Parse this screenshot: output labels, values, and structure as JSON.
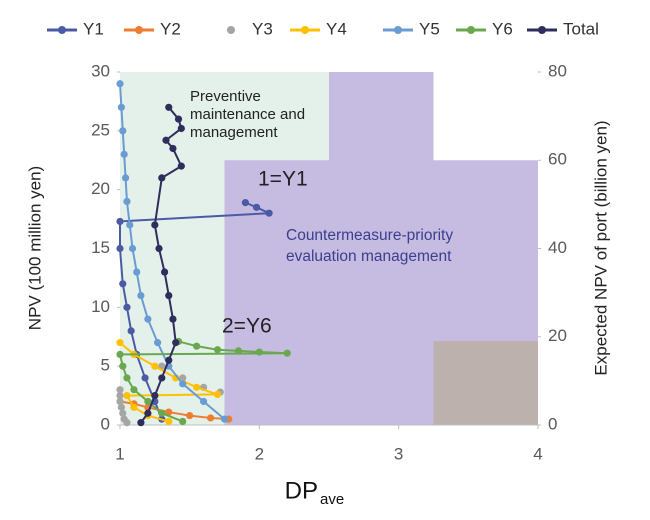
{
  "chart_data": {
    "type": "line",
    "xlabel": "DP",
    "xlabel_sub": "ave",
    "ylabel": "NPV (100 million yen)",
    "y2label": "Expected NPV of port  (billion yen)",
    "xlim": [
      1,
      4
    ],
    "xticks": [
      1,
      2,
      3,
      4
    ],
    "ylim": [
      0,
      30
    ],
    "yticks": [
      0,
      5,
      10,
      15,
      20,
      25,
      30
    ],
    "y2lim": [
      0,
      80
    ],
    "y2ticks": [
      0,
      20,
      40,
      60,
      80
    ],
    "regions": [
      {
        "x": [
          1,
          2.5
        ],
        "y2": [
          0,
          80
        ],
        "color": "#e3f1ea"
      },
      {
        "x": [
          1.75,
          2.5
        ],
        "y2": [
          0,
          60
        ],
        "color": "#c6bbe1"
      },
      {
        "x": [
          2.5,
          3.25
        ],
        "y2": [
          0,
          80
        ],
        "color": "#c6bbe1"
      },
      {
        "x": [
          3.25,
          4
        ],
        "y2": [
          0,
          60
        ],
        "color": "#c6bbe1"
      },
      {
        "x": [
          3.25,
          4
        ],
        "y2": [
          0,
          19
        ],
        "color": "#bdb1ad"
      }
    ],
    "annotations": [
      {
        "lines": [
          "Preventive",
          "maintenance and",
          "management"
        ]
      },
      {
        "lines": [
          "1=Y1"
        ]
      },
      {
        "lines": [
          "Countermeasure-priority",
          "evaluation management"
        ]
      },
      {
        "lines": [
          "2=Y6"
        ]
      }
    ],
    "series": [
      {
        "name": "Y1",
        "color": "#4c5aa6",
        "markers_only": false,
        "x": [
          1.9,
          1.98,
          2.07,
          1.0,
          1.0,
          1.02,
          1.05,
          1.08,
          1.12,
          1.18,
          1.25,
          1.3
        ],
        "values": [
          18.9,
          18.5,
          18.0,
          17.3,
          15,
          12,
          10,
          8,
          6,
          4,
          2,
          0.5
        ]
      },
      {
        "name": "Y2",
        "color": "#ed7d31",
        "markers_only": false,
        "x": [
          1.0,
          1.1,
          1.2,
          1.35,
          1.5,
          1.65,
          1.78
        ],
        "values": [
          2,
          1.8,
          1.5,
          1.1,
          0.8,
          0.6,
          0.5
        ]
      },
      {
        "name": "Y3",
        "color": "#a5a5a5",
        "markers_only": true,
        "x": [
          1.0,
          1.0,
          1.0,
          1.01,
          1.02,
          1.03,
          1.05,
          1.3,
          1.45,
          1.6,
          1.72
        ],
        "values": [
          3,
          2.5,
          2,
          1.5,
          1,
          0.5,
          0.2,
          5,
          4,
          3.2,
          2.8
        ]
      },
      {
        "name": "Y4",
        "color": "#ffc000",
        "markers_only": false,
        "x": [
          1.0,
          1.1,
          1.25,
          1.4,
          1.55,
          1.7,
          1.05,
          1.1,
          1.2,
          1.35
        ],
        "values": [
          7,
          6,
          5,
          4,
          3.2,
          2.6,
          2.5,
          1.5,
          0.8,
          0.3
        ]
      },
      {
        "name": "Y5",
        "color": "#6a9bd2",
        "markers_only": false,
        "x": [
          1.0,
          1.01,
          1.02,
          1.03,
          1.04,
          1.05,
          1.07,
          1.09,
          1.12,
          1.15,
          1.2,
          1.27,
          1.35,
          1.45,
          1.6,
          1.75
        ],
        "values": [
          29,
          27,
          25,
          23,
          21,
          19,
          17,
          15,
          13,
          11,
          9,
          7,
          5,
          3.5,
          2,
          0.5
        ]
      },
      {
        "name": "Y6",
        "color": "#6aa84f",
        "markers_only": false,
        "x": [
          1.42,
          1.55,
          1.7,
          1.85,
          2.0,
          2.2,
          1.0,
          1.02,
          1.05,
          1.1,
          1.2,
          1.3,
          1.45
        ],
        "values": [
          7.1,
          6.7,
          6.4,
          6.3,
          6.2,
          6.1,
          6.0,
          5,
          4,
          3,
          2,
          1,
          0.3
        ]
      },
      {
        "name": "Total",
        "color": "#2f2d5c",
        "markers_only": false,
        "x": [
          1.35,
          1.42,
          1.44,
          1.33,
          1.38,
          1.44,
          1.3,
          1.25,
          1.28,
          1.32,
          1.35,
          1.38,
          1.4,
          1.35,
          1.3,
          1.25,
          1.2,
          1.15
        ],
        "values": [
          27,
          26,
          25.2,
          24.2,
          23.5,
          22,
          21,
          17,
          15,
          13,
          11,
          9,
          7,
          5.5,
          4,
          2.5,
          1,
          0.2
        ]
      }
    ]
  }
}
